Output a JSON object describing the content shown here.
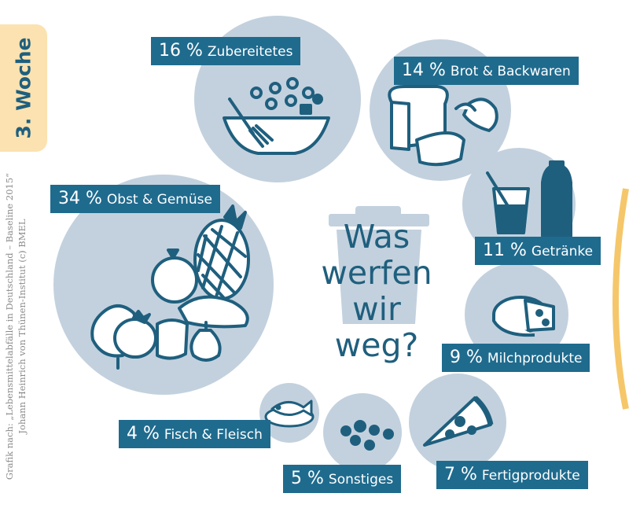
{
  "sidebar": {
    "week": "3. Woche",
    "source_line1": "Grafik nach: „Lebensmittelabfälle in Deutschland – Baseline 2015“",
    "source_line2": "Johann Heinrich von Thünen-Institut (c) BMEL"
  },
  "title": "Was werfen wir weg?",
  "colors": {
    "circle": "#c3d1de",
    "label_bg": "#1f6b8e",
    "icon": "#1f5f7e",
    "tab": "#fbe2b0",
    "accent": "#f5c76a"
  },
  "chart_data": {
    "type": "bubble",
    "title": "Was werfen wir weg?",
    "unit": "%",
    "items": [
      {
        "value": 34,
        "pct": "34 %",
        "label": "Obst & Gemüse",
        "icon": "fruit-vegetables-icon"
      },
      {
        "value": 16,
        "pct": "16 %",
        "label": "Zubereitetes",
        "icon": "salad-bowl-icon"
      },
      {
        "value": 14,
        "pct": "14 %",
        "label": "Brot & Backwaren",
        "icon": "bread-icon"
      },
      {
        "value": 11,
        "pct": "11 %",
        "label": "Getränke",
        "icon": "drinks-icon"
      },
      {
        "value": 9,
        "pct": "9 %",
        "label": "Milchprodukte",
        "icon": "cheese-icon"
      },
      {
        "value": 7,
        "pct": "7 %",
        "label": "Fertigprodukte",
        "icon": "pizza-icon"
      },
      {
        "value": 5,
        "pct": "5 %",
        "label": "Sonstiges",
        "icon": "misc-dots-icon"
      },
      {
        "value": 4,
        "pct": "4 %",
        "label": "Fisch & Fleisch",
        "icon": "fish-plate-icon"
      }
    ]
  }
}
